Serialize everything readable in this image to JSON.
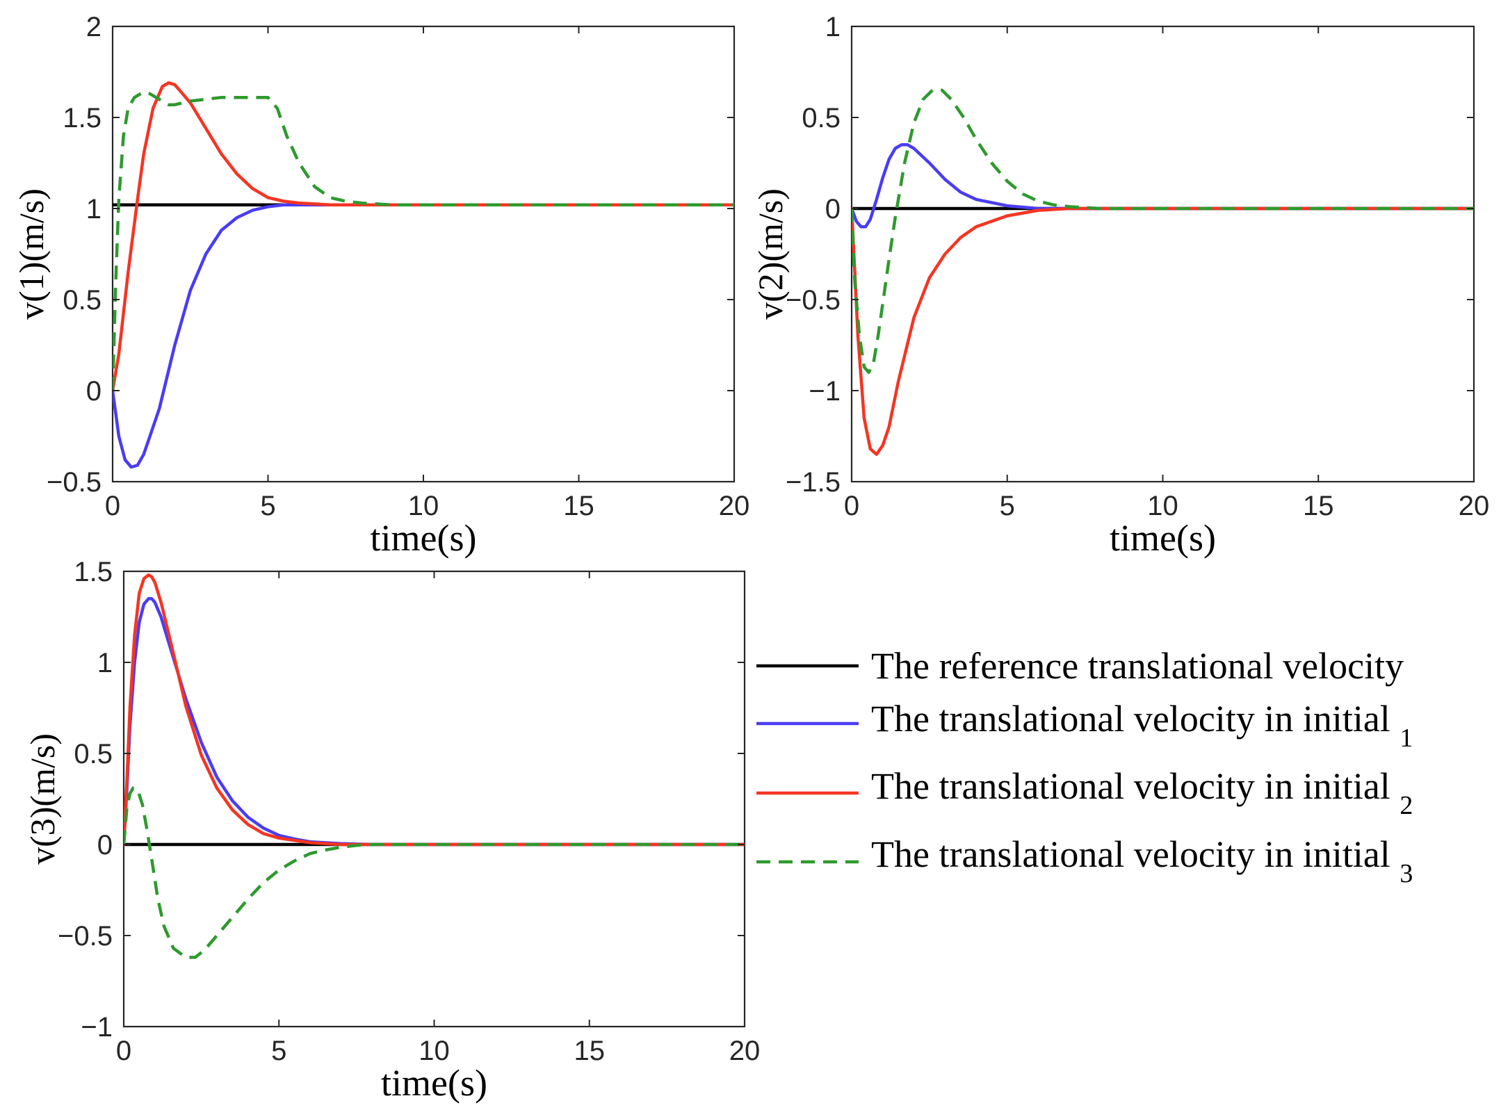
{
  "legend": {
    "entries": [
      {
        "label": "The reference translational velocity",
        "sub": "",
        "color": "#000000",
        "dash": false
      },
      {
        "label": "The translational velocity in initial",
        "sub": "1",
        "color": "#4a3cf5",
        "dash": false
      },
      {
        "label": "The translational velocity in initial",
        "sub": "2",
        "color": "#f53523",
        "dash": false
      },
      {
        "label": "The translational velocity in initial",
        "sub": "3",
        "color": "#2e9a2e",
        "dash": true
      }
    ]
  },
  "chart_data": [
    {
      "type": "line",
      "title": "",
      "xlabel": "time(s)",
      "ylabel": "v(1)(m/s)",
      "xlim": [
        0,
        20
      ],
      "ylim": [
        -0.5,
        2
      ],
      "xticks": [
        0,
        5,
        10,
        15,
        20
      ],
      "yticks": [
        -0.5,
        0,
        0.5,
        1,
        1.5,
        2
      ],
      "xtick_labels": [
        "0",
        "5",
        "10",
        "15",
        "20"
      ],
      "ytick_labels": [
        "−0.5",
        "0",
        "0.5",
        "1",
        "1.5",
        "2"
      ],
      "grid": false,
      "series": [
        {
          "name": "reference",
          "color": "#000000",
          "dash": false,
          "x": [
            0,
            20
          ],
          "y": [
            1.02,
            1.02
          ]
        },
        {
          "name": "initial_1",
          "color": "#4a3cf5",
          "dash": false,
          "x": [
            0,
            0.2,
            0.4,
            0.6,
            0.8,
            1.0,
            1.5,
            2.0,
            2.5,
            3.0,
            3.5,
            4.0,
            4.5,
            5.0,
            5.5,
            6.0,
            7.0,
            8.0,
            20
          ],
          "y": [
            0,
            -0.25,
            -0.38,
            -0.42,
            -0.41,
            -0.35,
            -0.1,
            0.25,
            0.55,
            0.75,
            0.88,
            0.95,
            0.99,
            1.01,
            1.02,
            1.02,
            1.02,
            1.02,
            1.02
          ]
        },
        {
          "name": "initial_2",
          "color": "#f53523",
          "dash": false,
          "x": [
            0,
            0.2,
            0.5,
            0.8,
            1.0,
            1.3,
            1.6,
            1.8,
            2.0,
            2.5,
            3.0,
            3.5,
            4.0,
            4.5,
            5.0,
            5.5,
            6.0,
            7.0,
            20
          ],
          "y": [
            0,
            0.2,
            0.65,
            1.05,
            1.3,
            1.55,
            1.67,
            1.69,
            1.68,
            1.58,
            1.44,
            1.3,
            1.19,
            1.11,
            1.06,
            1.04,
            1.03,
            1.02,
            1.02
          ]
        },
        {
          "name": "initial_3",
          "color": "#2e9a2e",
          "dash": true,
          "x": [
            0,
            0.1,
            0.2,
            0.35,
            0.5,
            0.7,
            1.0,
            1.2,
            1.5,
            1.8,
            2.0,
            2.5,
            3.0,
            3.5,
            4.0,
            4.5,
            5.0,
            5.3,
            5.6,
            6.0,
            6.5,
            7.0,
            7.5,
            8.0,
            9.0,
            10.0,
            20
          ],
          "y": [
            0,
            0.6,
            1.05,
            1.4,
            1.55,
            1.61,
            1.64,
            1.63,
            1.6,
            1.57,
            1.57,
            1.59,
            1.6,
            1.61,
            1.61,
            1.61,
            1.61,
            1.55,
            1.4,
            1.25,
            1.12,
            1.06,
            1.04,
            1.03,
            1.02,
            1.02,
            1.02
          ]
        }
      ]
    },
    {
      "type": "line",
      "title": "",
      "xlabel": "time(s)",
      "ylabel": "v(2)(m/s)",
      "xlim": [
        0,
        20
      ],
      "ylim": [
        -1.5,
        1
      ],
      "xticks": [
        0,
        5,
        10,
        15,
        20
      ],
      "yticks": [
        -1.5,
        -1,
        -0.5,
        0,
        0.5,
        1
      ],
      "xtick_labels": [
        "0",
        "5",
        "10",
        "15",
        "20"
      ],
      "ytick_labels": [
        "−1.5",
        "−1",
        "−0.5",
        "0",
        "0.5",
        "1"
      ],
      "grid": false,
      "series": [
        {
          "name": "reference",
          "color": "#000000",
          "dash": false,
          "x": [
            0,
            20
          ],
          "y": [
            0,
            0
          ]
        },
        {
          "name": "initial_1",
          "color": "#4a3cf5",
          "dash": false,
          "x": [
            0,
            0.15,
            0.3,
            0.45,
            0.6,
            0.8,
            1.0,
            1.2,
            1.4,
            1.6,
            1.8,
            2.0,
            2.5,
            3.0,
            3.5,
            4.0,
            5.0,
            6.0,
            7.0,
            20
          ],
          "y": [
            0,
            -0.07,
            -0.1,
            -0.1,
            -0.06,
            0.05,
            0.17,
            0.27,
            0.33,
            0.35,
            0.35,
            0.33,
            0.25,
            0.16,
            0.09,
            0.05,
            0.015,
            0.0,
            0.0,
            0
          ]
        },
        {
          "name": "initial_2",
          "color": "#f53523",
          "dash": false,
          "x": [
            0,
            0.1,
            0.2,
            0.4,
            0.6,
            0.8,
            1.0,
            1.2,
            1.5,
            2.0,
            2.5,
            3.0,
            3.5,
            4.0,
            5.0,
            6.0,
            7.0,
            8.0,
            20
          ],
          "y": [
            0,
            -0.35,
            -0.7,
            -1.15,
            -1.32,
            -1.35,
            -1.3,
            -1.2,
            -0.95,
            -0.6,
            -0.38,
            -0.25,
            -0.16,
            -0.1,
            -0.04,
            -0.01,
            0.0,
            0.0,
            0
          ]
        },
        {
          "name": "initial_3",
          "color": "#2e9a2e",
          "dash": true,
          "x": [
            0,
            0.1,
            0.25,
            0.4,
            0.55,
            0.7,
            0.85,
            1.0,
            1.2,
            1.4,
            1.7,
            2.0,
            2.3,
            2.6,
            2.9,
            3.2,
            3.6,
            4.0,
            4.5,
            5.0,
            5.5,
            6.0,
            6.5,
            7.0,
            8.0,
            20
          ],
          "y": [
            0,
            -0.4,
            -0.7,
            -0.87,
            -0.9,
            -0.85,
            -0.7,
            -0.52,
            -0.28,
            -0.05,
            0.25,
            0.47,
            0.6,
            0.65,
            0.65,
            0.6,
            0.5,
            0.38,
            0.25,
            0.15,
            0.08,
            0.04,
            0.02,
            0.01,
            0.0,
            0
          ]
        }
      ]
    },
    {
      "type": "line",
      "title": "",
      "xlabel": "time(s)",
      "ylabel": "v(3)(m/s)",
      "xlim": [
        0,
        20
      ],
      "ylim": [
        -1,
        1.5
      ],
      "xticks": [
        0,
        5,
        10,
        15,
        20
      ],
      "yticks": [
        -1,
        -0.5,
        0,
        0.5,
        1,
        1.5
      ],
      "xtick_labels": [
        "0",
        "5",
        "10",
        "15",
        "20"
      ],
      "ytick_labels": [
        "−1",
        "−0.5",
        "0",
        "0.5",
        "1",
        "1.5"
      ],
      "grid": false,
      "series": [
        {
          "name": "reference",
          "color": "#000000",
          "dash": false,
          "x": [
            0,
            20
          ],
          "y": [
            0,
            0
          ]
        },
        {
          "name": "initial_1",
          "color": "#4a3cf5",
          "dash": false,
          "x": [
            0,
            0.1,
            0.2,
            0.35,
            0.5,
            0.65,
            0.8,
            0.9,
            1.0,
            1.2,
            1.5,
            2.0,
            2.5,
            3.0,
            3.5,
            4.0,
            4.5,
            5.0,
            5.5,
            6.0,
            7.0,
            8.0,
            20
          ],
          "y": [
            0,
            0.3,
            0.65,
            1.0,
            1.22,
            1.32,
            1.35,
            1.35,
            1.33,
            1.25,
            1.08,
            0.8,
            0.56,
            0.37,
            0.24,
            0.15,
            0.09,
            0.05,
            0.03,
            0.015,
            0.005,
            0.0,
            0
          ]
        },
        {
          "name": "initial_2",
          "color": "#f53523",
          "dash": false,
          "x": [
            0,
            0.1,
            0.2,
            0.35,
            0.5,
            0.65,
            0.8,
            0.9,
            1.0,
            1.2,
            1.5,
            2.0,
            2.5,
            3.0,
            3.5,
            4.0,
            4.5,
            5.0,
            6.0,
            7.0,
            8.0,
            20
          ],
          "y": [
            0,
            0.35,
            0.75,
            1.15,
            1.38,
            1.46,
            1.48,
            1.47,
            1.44,
            1.33,
            1.12,
            0.76,
            0.49,
            0.31,
            0.19,
            0.11,
            0.06,
            0.035,
            0.01,
            0.0,
            0.0,
            0
          ]
        },
        {
          "name": "initial_3",
          "color": "#2e9a2e",
          "dash": true,
          "x": [
            0,
            0.1,
            0.2,
            0.3,
            0.45,
            0.6,
            0.75,
            0.9,
            1.1,
            1.3,
            1.6,
            2.0,
            2.3,
            2.6,
            3.0,
            3.5,
            4.0,
            4.5,
            5.0,
            5.5,
            6.0,
            6.5,
            7.0,
            7.5,
            8.0,
            20
          ],
          "y": [
            0,
            0.2,
            0.28,
            0.31,
            0.3,
            0.22,
            0.08,
            -0.08,
            -0.3,
            -0.45,
            -0.57,
            -0.62,
            -0.62,
            -0.58,
            -0.5,
            -0.4,
            -0.3,
            -0.21,
            -0.14,
            -0.09,
            -0.05,
            -0.03,
            -0.015,
            -0.005,
            0.0,
            0
          ]
        }
      ]
    }
  ]
}
